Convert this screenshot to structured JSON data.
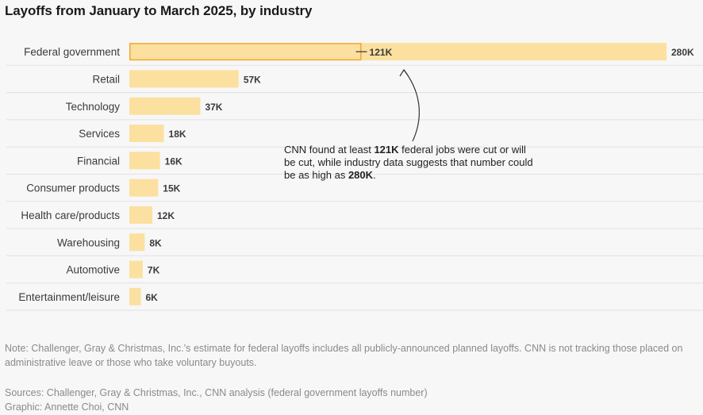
{
  "page": {
    "title": "Layoffs from January to March 2025, by industry",
    "note": "Note: Challenger, Gray & Christmas, Inc.'s estimate for federal layoffs includes all publicly-announced planned layoffs. CNN is not tracking those placed on administrative leave or those who take voluntary buyouts.",
    "sources": "Sources: Challenger, Gray & Christmas, Inc., CNN analysis (federal government layoffs number)",
    "graphic_credit": "Graphic: Annette Choi, CNN"
  },
  "annotation": {
    "part1": "CNN found at least ",
    "value_low": "121K",
    "part2": " federal jobs were cut or will be cut, while industry data suggests that number could be as high as ",
    "value_high": "280K",
    "part3": "."
  },
  "colors": {
    "bar": "#fbe0a0",
    "highlight_outline": "#f0a830",
    "gridline": "#e2e2e2",
    "background": "#f7f7f7"
  },
  "chart_data": {
    "type": "bar",
    "orientation": "horizontal",
    "title": "Layoffs from January to March 2025, by industry",
    "xlabel": "",
    "ylabel": "",
    "xlim": [
      0,
      280000
    ],
    "grid": true,
    "categories": [
      "Federal government",
      "Retail",
      "Technology",
      "Services",
      "Financial",
      "Consumer products",
      "Health care/products",
      "Warehousing",
      "Automotive",
      "Entertainment/leisure"
    ],
    "values": [
      280000,
      57000,
      37000,
      18000,
      16000,
      15000,
      12000,
      8000,
      7000,
      6000
    ],
    "value_labels": [
      "280K",
      "57K",
      "37K",
      "18K",
      "16K",
      "15K",
      "12K",
      "8K",
      "7K",
      "6K"
    ],
    "highlight": {
      "category": "Federal government",
      "value": 121000,
      "label": "121K"
    }
  }
}
